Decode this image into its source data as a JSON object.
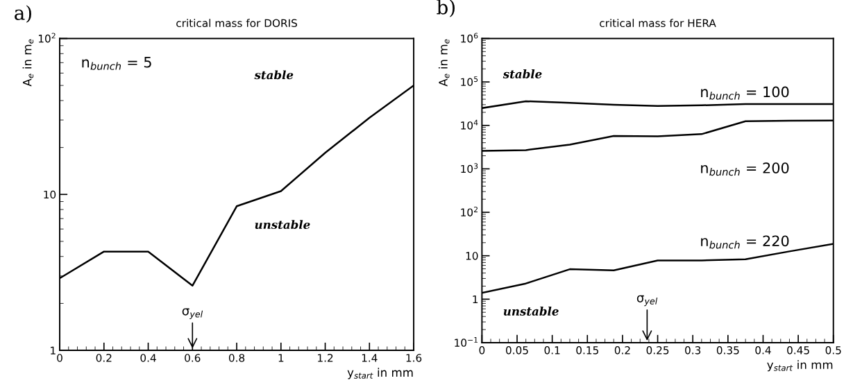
{
  "chart_data": [
    {
      "type": "line",
      "title": "critical mass for DORIS",
      "xlabel": "y$_{start}$ in mm",
      "ylabel": "A$_{e}$ in m$_{e}$",
      "log": "y",
      "xlim": [
        0,
        1.6
      ],
      "ylim": [
        1,
        100
      ],
      "xticks": [
        0,
        0.2,
        0.4,
        0.6,
        0.8,
        1,
        1.2,
        1.4,
        1.6
      ],
      "yticks": [
        1,
        10,
        {
          "value": 100,
          "label": "10$^{2}$"
        }
      ],
      "grid": false,
      "legend": false,
      "x": [
        0,
        0.2,
        0.4,
        0.6,
        0.8,
        1.0,
        1.2,
        1.4,
        1.6
      ],
      "series": [
        {
          "name": "n$_{bunch}$ = 5",
          "color": "#000000",
          "values": [
            2.9,
            4.3,
            4.3,
            2.6,
            8.4,
            10.5,
            18.5,
            31,
            50
          ]
        }
      ],
      "annotations": [
        "a)",
        "stable",
        "unstable",
        "σ$_{yel}$"
      ]
    },
    {
      "type": "line",
      "title": "critical mass for HERA",
      "xlabel": "y$_{start}$ in mm",
      "ylabel": "A$_{e}$ in m$_{e}$",
      "log": "y",
      "xlim": [
        0,
        0.5
      ],
      "ylim": [
        0.1,
        1000000
      ],
      "xticks": [
        0,
        0.05,
        0.1,
        0.15,
        0.2,
        0.25,
        0.3,
        0.35,
        0.4,
        0.45,
        0.5
      ],
      "yticks": [
        {
          "value": 0.1,
          "label": "10$^{−1}$"
        },
        1,
        10,
        {
          "value": 100,
          "label": "10$^{2}$"
        },
        {
          "value": 1000,
          "label": "10$^{3}$"
        },
        {
          "value": 10000,
          "label": "10$^{4}$"
        },
        {
          "value": 100000,
          "label": "10$^{5}$"
        },
        {
          "value": 1000000,
          "label": "10$^{6}$"
        }
      ],
      "grid": false,
      "legend": false,
      "x": [
        0,
        0.0625,
        0.125,
        0.1875,
        0.25,
        0.3125,
        0.375,
        0.4375,
        0.5
      ],
      "series": [
        {
          "name": "n$_{bunch}$ = 100",
          "color": "#000000",
          "values": [
            25000,
            36000,
            33000,
            30000,
            28000,
            29000,
            31000,
            31000,
            31000
          ]
        },
        {
          "name": "n$_{bunch}$ = 200",
          "color": "#000000",
          "values": [
            2600,
            2700,
            3600,
            5700,
            5600,
            6300,
            12500,
            12800,
            13000
          ]
        },
        {
          "name": "n$_{bunch}$ = 220",
          "color": "#000000",
          "values": [
            1.4,
            2.3,
            4.9,
            4.6,
            7.8,
            7.8,
            8.3,
            12.6,
            18.8
          ]
        }
      ],
      "annotations": [
        "b)",
        "stable",
        "unstable",
        "σ$_{yel}$"
      ]
    }
  ]
}
